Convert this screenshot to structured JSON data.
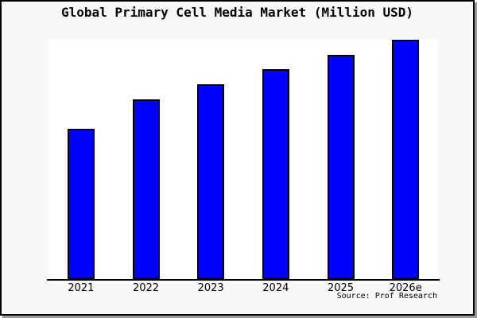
{
  "chart_data": {
    "type": "bar",
    "title": "Global Primary Cell Media Market (Million USD)",
    "categories": [
      "2021",
      "2022",
      "2023",
      "2024",
      "2025",
      "2026e"
    ],
    "values_relative": [
      62.8,
      75.1,
      81.4,
      87.7,
      93.7,
      100.0
    ],
    "value_axis_note": "no y-axis ticks or numeric labels shown; values are relative bar heights (tallest = 100)",
    "xlabel": "",
    "ylabel": "",
    "legend": "none",
    "grid": false,
    "bar_color": "#0000ff",
    "bar_border_color": "#000000",
    "plot_background": "#ffffff",
    "canvas_background": "#f8f8f8",
    "frame_border_color": "#000000",
    "shadow_color": "#999999",
    "source": "Source: Prof Research"
  }
}
